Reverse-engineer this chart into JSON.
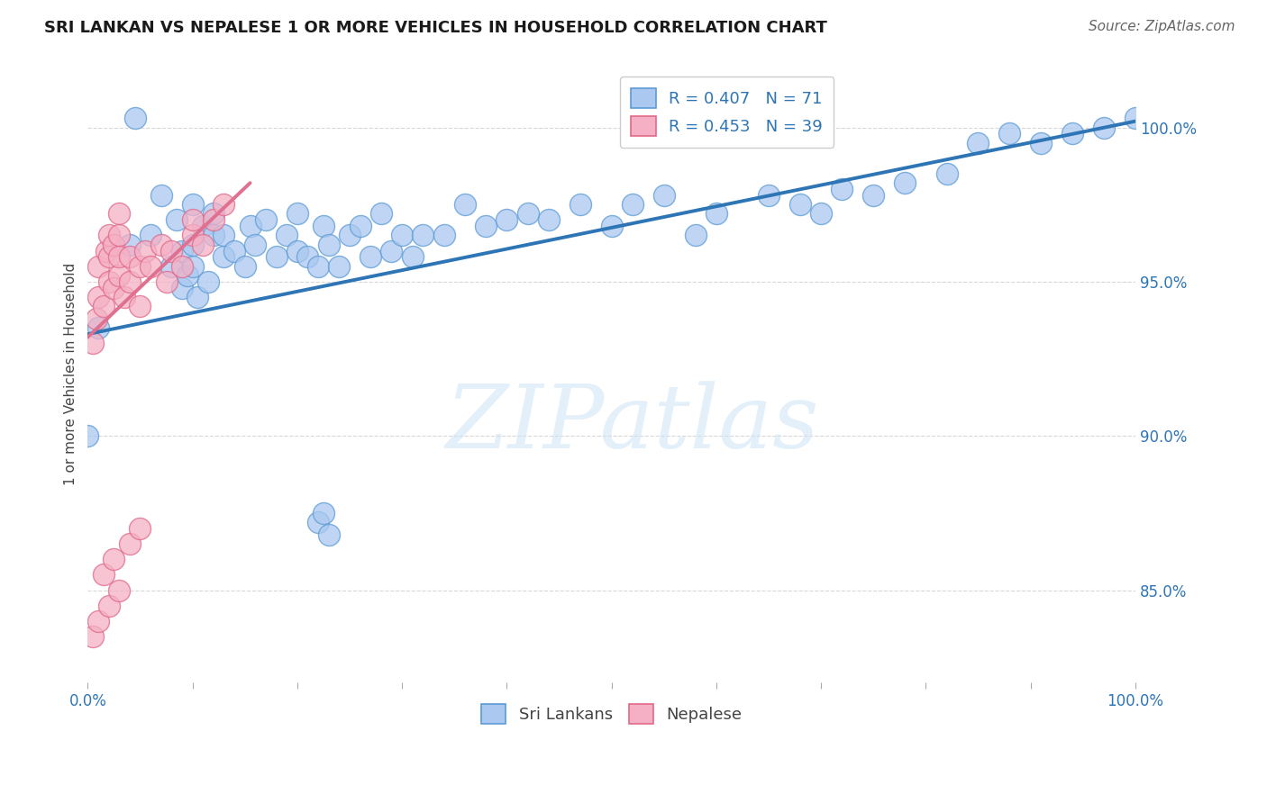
{
  "title": "SRI LANKAN VS NEPALESE 1 OR MORE VEHICLES IN HOUSEHOLD CORRELATION CHART",
  "source": "Source: ZipAtlas.com",
  "ylabel": "1 or more Vehicles in Household",
  "watermark_text": "ZIPatlas",
  "sri_color": "#aac8f0",
  "sri_edge": "#5b9bd5",
  "nep_color": "#f5b0c5",
  "nep_edge": "#e06888",
  "sri_line_color": "#2E75B6",
  "nep_line_color": "#e07090",
  "nep_line_dash": [
    6,
    4
  ],
  "text_color": "#2E75B6",
  "title_color": "#1a1a1a",
  "R_sri": 0.407,
  "N_sri": 71,
  "R_nep": 0.453,
  "N_nep": 39,
  "sri_line_x": [
    0.0,
    1.0
  ],
  "sri_line_y": [
    93.3,
    100.2
  ],
  "nep_line_x": [
    0.0,
    0.155
  ],
  "nep_line_y": [
    93.2,
    98.2
  ],
  "sri_x": [
    0.01,
    0.04,
    0.045,
    0.06,
    0.07,
    0.08,
    0.085,
    0.09,
    0.09,
    0.095,
    0.1,
    0.1,
    0.1,
    0.105,
    0.11,
    0.115,
    0.12,
    0.12,
    0.13,
    0.13,
    0.14,
    0.15,
    0.155,
    0.16,
    0.17,
    0.18,
    0.19,
    0.2,
    0.2,
    0.21,
    0.22,
    0.225,
    0.23,
    0.24,
    0.25,
    0.26,
    0.27,
    0.28,
    0.29,
    0.3,
    0.31,
    0.32,
    0.34,
    0.36,
    0.38,
    0.4,
    0.42,
    0.44,
    0.47,
    0.5,
    0.52,
    0.55,
    0.58,
    0.6,
    0.22,
    0.225,
    0.23,
    0.65,
    0.68,
    0.7,
    0.72,
    0.75,
    0.78,
    0.82,
    0.85,
    0.88,
    0.91,
    0.94,
    0.97,
    1.0,
    0.0
  ],
  "sri_y": [
    93.5,
    96.2,
    100.3,
    96.5,
    97.8,
    95.5,
    97.0,
    94.8,
    96.0,
    95.2,
    95.5,
    96.2,
    97.5,
    94.5,
    96.8,
    95.0,
    96.5,
    97.2,
    95.8,
    96.5,
    96.0,
    95.5,
    96.8,
    96.2,
    97.0,
    95.8,
    96.5,
    96.0,
    97.2,
    95.8,
    95.5,
    96.8,
    96.2,
    95.5,
    96.5,
    96.8,
    95.8,
    97.2,
    96.0,
    96.5,
    95.8,
    96.5,
    96.5,
    97.5,
    96.8,
    97.0,
    97.2,
    97.0,
    97.5,
    96.8,
    97.5,
    97.8,
    96.5,
    97.2,
    87.2,
    87.5,
    86.8,
    97.8,
    97.5,
    97.2,
    98.0,
    97.8,
    98.2,
    98.5,
    99.5,
    99.8,
    99.5,
    99.8,
    100.0,
    100.3,
    90.0
  ],
  "nep_x": [
    0.005,
    0.008,
    0.01,
    0.01,
    0.015,
    0.018,
    0.02,
    0.02,
    0.02,
    0.025,
    0.025,
    0.03,
    0.03,
    0.03,
    0.03,
    0.035,
    0.04,
    0.04,
    0.05,
    0.05,
    0.055,
    0.06,
    0.07,
    0.075,
    0.08,
    0.09,
    0.1,
    0.1,
    0.11,
    0.12,
    0.005,
    0.01,
    0.015,
    0.02,
    0.025,
    0.03,
    0.04,
    0.05,
    0.13
  ],
  "nep_y": [
    93.0,
    93.8,
    94.5,
    95.5,
    94.2,
    96.0,
    95.0,
    95.8,
    96.5,
    94.8,
    96.2,
    95.2,
    95.8,
    96.5,
    97.2,
    94.5,
    95.0,
    95.8,
    94.2,
    95.5,
    96.0,
    95.5,
    96.2,
    95.0,
    96.0,
    95.5,
    96.5,
    97.0,
    96.2,
    97.0,
    83.5,
    84.0,
    85.5,
    84.5,
    86.0,
    85.0,
    86.5,
    87.0,
    97.5
  ],
  "xlim": [
    0.0,
    1.0
  ],
  "ylim": [
    82.0,
    102.0
  ],
  "yticks": [
    85.0,
    90.0,
    95.0,
    100.0
  ],
  "xtick_labels_show": [
    0,
    10
  ],
  "grid_color": "#d8d8d8",
  "title_fontsize": 13,
  "tick_fontsize": 12,
  "legend_fontsize": 13
}
